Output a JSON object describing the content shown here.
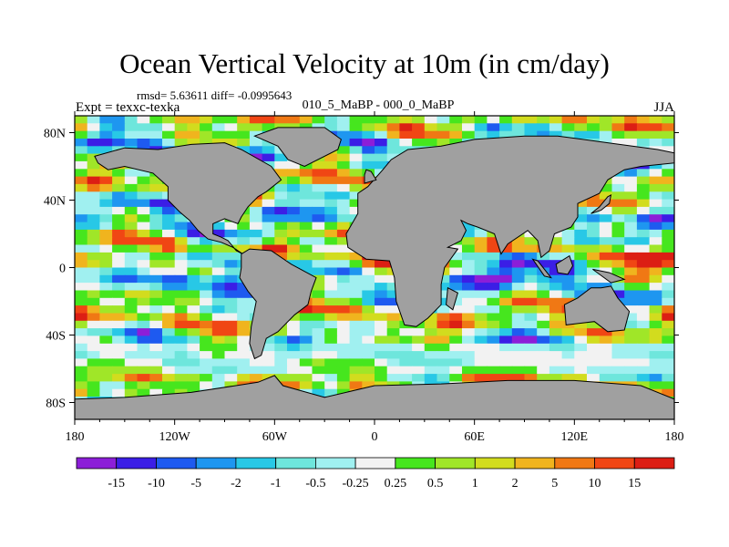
{
  "header": {
    "title": "Ocean Vertical Velocity at 10m (in cm/day)",
    "stats": "rmsd= 5.63611 diff= -0.0995643",
    "experiment": "Expt = texxc-texka",
    "subtitle": "010_5_MaBP - 000_0_MaBP",
    "season": "JJA"
  },
  "chart_data": {
    "type": "heatmap",
    "title": "Ocean Vertical Velocity at 10m (in cm/day)",
    "subtitle": "010_5_MaBP - 000_0_MaBP",
    "season": "JJA",
    "rmsd": 5.63611,
    "diff": -0.0995643,
    "experiment": "texxc-texka",
    "units": "cm/day",
    "x_ticks": [
      "180",
      "120W",
      "60W",
      "0",
      "60E",
      "120E",
      "180"
    ],
    "x_tick_values": [
      -180,
      -120,
      -60,
      0,
      60,
      120,
      180
    ],
    "y_ticks": [
      "80N",
      "40N",
      "0",
      "40S",
      "80S"
    ],
    "y_tick_values": [
      80,
      40,
      0,
      -40,
      -80
    ],
    "xlim": [
      -180,
      180
    ],
    "ylim": [
      -90,
      90
    ],
    "colorbar": {
      "labels": [
        "-15",
        "-10",
        "-5",
        "-2",
        "-1",
        "-0.5",
        "-0.25",
        "0.25",
        "0.5",
        "1",
        "2",
        "5",
        "10",
        "15"
      ],
      "colors": [
        "#8c1ed8",
        "#3b1ee6",
        "#1e5af0",
        "#1e96f0",
        "#28c8e6",
        "#6ee6dc",
        "#a0f0f0",
        "#f2f2f2",
        "#46e61e",
        "#a0e628",
        "#d2dc1e",
        "#f0b41e",
        "#f07814",
        "#f04614",
        "#dc1e14"
      ]
    },
    "land_color": "#a0a0a0"
  }
}
